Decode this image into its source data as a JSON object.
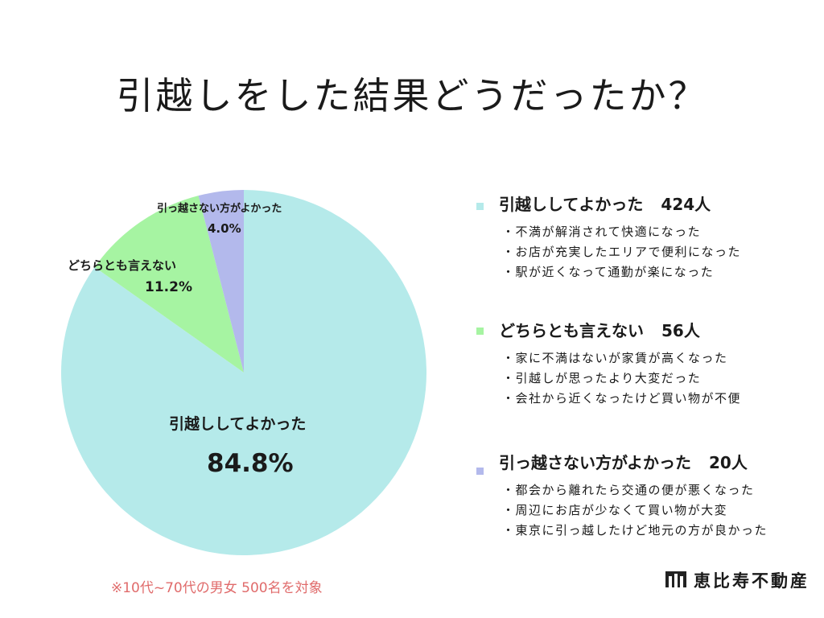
{
  "title": "引越しをした結果どうだったか？",
  "chart_data": {
    "type": "pie",
    "title": "引越しをした結果どうだったか？",
    "slices": [
      {
        "label": "引越ししてよかった",
        "value": 84.8,
        "value_label": "84.8%",
        "count_label": "424人",
        "color": "#b5eaea"
      },
      {
        "label": "どちらとも言えない",
        "value": 11.2,
        "value_label": "11.2%",
        "count_label": "56人",
        "color": "#a6f4a2"
      },
      {
        "label": "引っ越さない方がよかった",
        "value": 4.0,
        "value_label": "4.0%",
        "count_label": "20人",
        "color": "#b3b9ec"
      }
    ]
  },
  "legend": [
    {
      "label": "引越ししてよかった",
      "count": "424人",
      "reasons": [
        "不満が解消されて快適になった",
        "お店が充実したエリアで便利になった",
        "駅が近くなって通勤が楽になった"
      ]
    },
    {
      "label": "どちらとも言えない",
      "count": "56人",
      "reasons": [
        "家に不満はないが家賃が高くなった",
        "引越しが思ったより大変だった",
        "会社から近くなったけど買い物が不便"
      ]
    },
    {
      "label": "引っ越さない方がよかった",
      "count": "20人",
      "reasons": [
        "都会から離れたら交通の便が悪くなった",
        "周辺にお店が少なくて買い物が大変",
        "東京に引っ越したけど地元の方が良かった"
      ]
    }
  ],
  "note": "※10代~70代の男女 500名を対象",
  "logo": {
    "name": "恵比寿不動産",
    "icon": "building-logo-icon"
  }
}
